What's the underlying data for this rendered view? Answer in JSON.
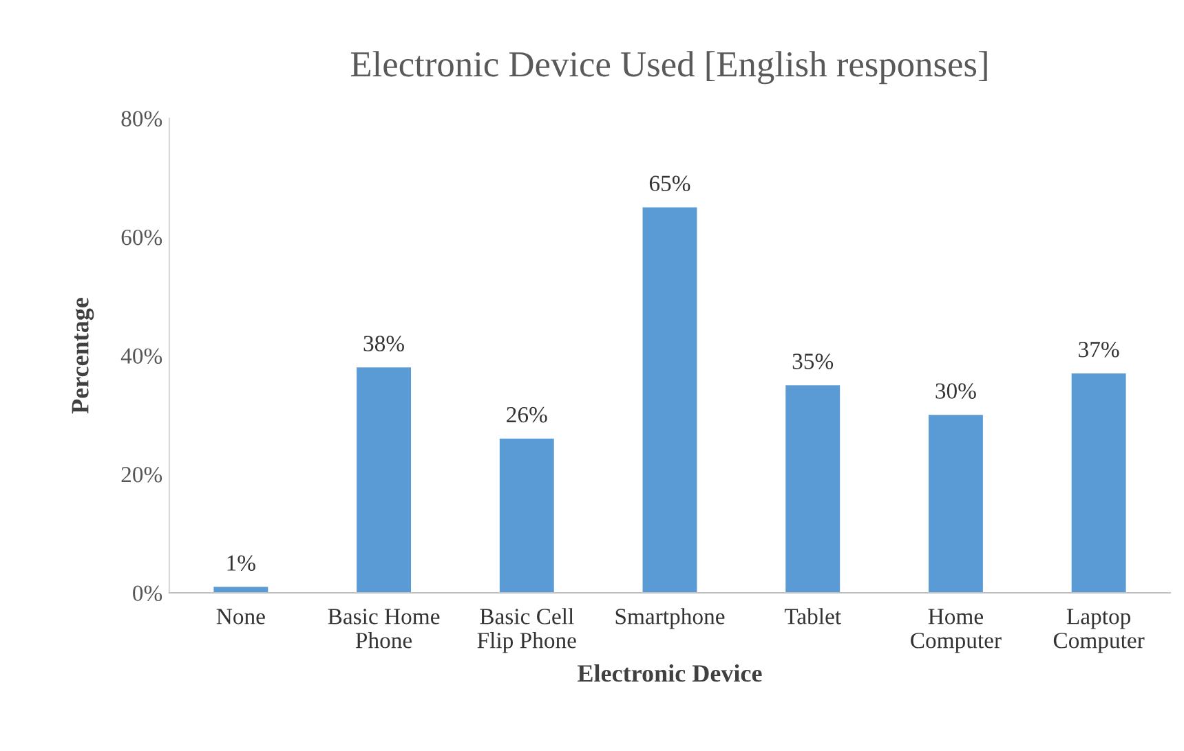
{
  "chart_data": {
    "type": "bar",
    "title": "Electronic Device Used [English responses]",
    "xlabel": "Electronic Device",
    "ylabel": "Percentage",
    "categories": [
      "None",
      "Basic Home\nPhone",
      "Basic Cell\nFlip Phone",
      "Smartphone",
      "Tablet",
      "Home\nComputer",
      "Laptop\nComputer"
    ],
    "values": [
      1,
      38,
      26,
      65,
      35,
      30,
      37
    ],
    "value_labels": [
      "1%",
      "38%",
      "26%",
      "65%",
      "35%",
      "30%",
      "37%"
    ],
    "color": "#5b9bd5",
    "ylim": [
      0,
      80
    ],
    "yticks": [
      {
        "value": 0,
        "label": "0%"
      },
      {
        "value": 20,
        "label": "20%"
      },
      {
        "value": 40,
        "label": "40%"
      },
      {
        "value": 60,
        "label": "60%"
      },
      {
        "value": 80,
        "label": "80%"
      }
    ],
    "grid": false
  }
}
